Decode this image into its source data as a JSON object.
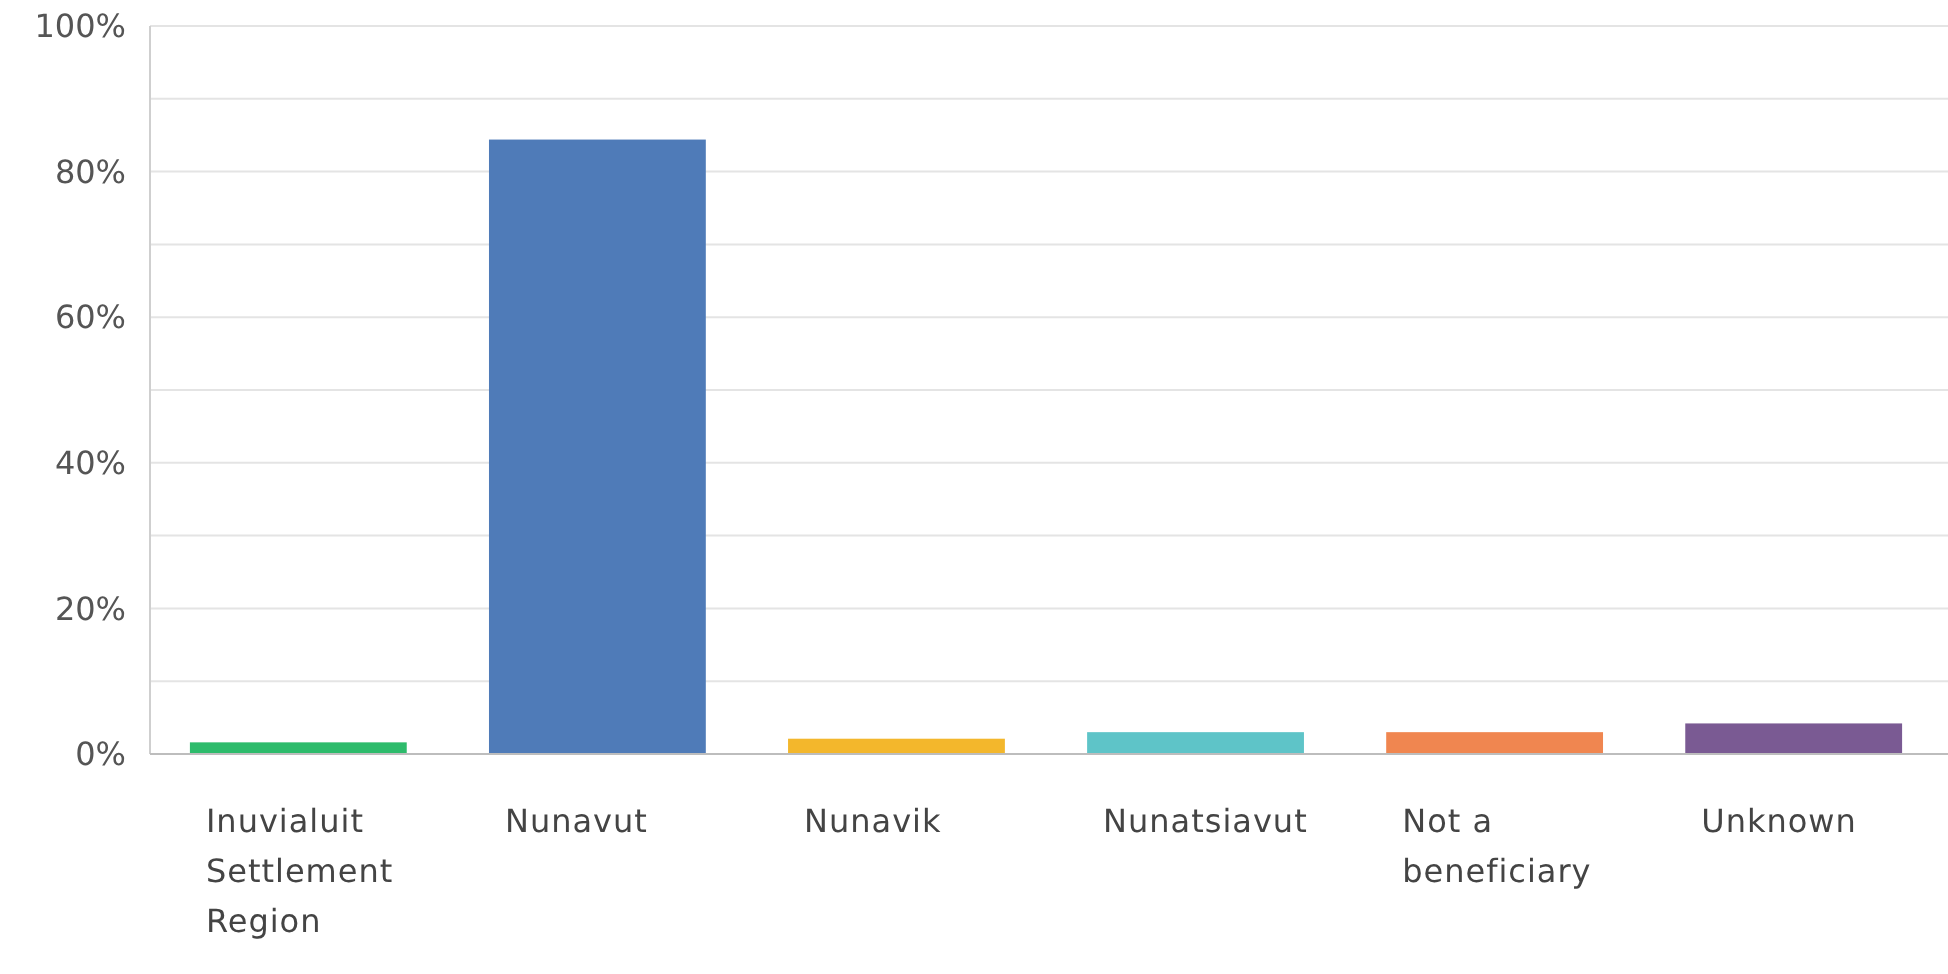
{
  "chart_data": {
    "type": "bar",
    "categories": [
      "Inuvialuit Settlement Region",
      "Nunavut",
      "Nunavik",
      "Nunatsiavut",
      "Not a beneficiary",
      "Unknown"
    ],
    "values": [
      1.6,
      84.4,
      2.1,
      3.0,
      3.0,
      4.2
    ],
    "colors": [
      "#2dbb6b",
      "#4f7bb8",
      "#f3b72c",
      "#5ec4c8",
      "#f08650",
      "#7a5a93"
    ],
    "ylim": [
      0,
      100
    ],
    "yticks": [
      {
        "value": 0,
        "label": "0%"
      },
      {
        "value": 10,
        "label": null
      },
      {
        "value": 20,
        "label": "20%"
      },
      {
        "value": 30,
        "label": null
      },
      {
        "value": 40,
        "label": "40%"
      },
      {
        "value": 50,
        "label": null
      },
      {
        "value": 60,
        "label": "60%"
      },
      {
        "value": 70,
        "label": null
      },
      {
        "value": 80,
        "label": "80%"
      },
      {
        "value": 90,
        "label": null
      },
      {
        "value": 100,
        "label": "100%"
      }
    ],
    "grid": "y"
  }
}
